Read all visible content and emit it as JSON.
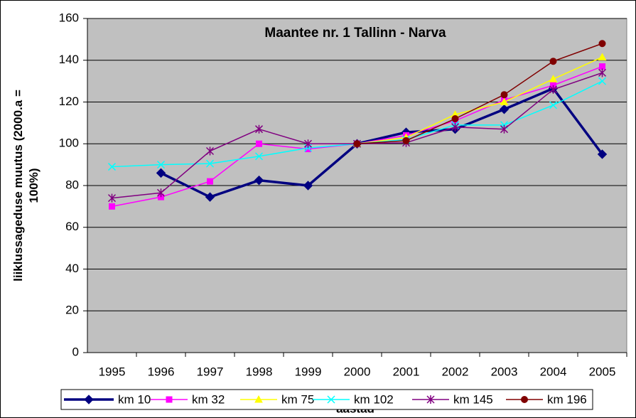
{
  "chart_data": {
    "type": "line",
    "title": "Maantee nr. 1 Tallinn - Narva",
    "y_label": "liiklussageduse muutus (2000.a = 100%)",
    "x_label": "aastad",
    "categories": [
      "1995",
      "1996",
      "1997",
      "1998",
      "1999",
      "2000",
      "2001",
      "2002",
      "2003",
      "2004",
      "2005"
    ],
    "ylim": [
      0,
      160
    ],
    "yticks": [
      0,
      20,
      40,
      60,
      80,
      100,
      120,
      140,
      160
    ],
    "grid": true,
    "legend": "bottom",
    "series": [
      {
        "name": "km 10",
        "color": "#000080",
        "marker": "diamond",
        "values": [
          null,
          86,
          74.5,
          82.5,
          80,
          100,
          105.5,
          107,
          116.5,
          126.5,
          95
        ]
      },
      {
        "name": "km 32",
        "color": "#ff00ff",
        "marker": "square",
        "values": [
          70,
          74.5,
          82,
          100,
          97.5,
          100,
          104,
          111,
          121,
          128,
          137
        ]
      },
      {
        "name": "km 75",
        "color": "#ffff00",
        "marker": "triangle",
        "values": [
          null,
          null,
          null,
          null,
          null,
          100,
          103,
          114,
          120,
          131,
          141.5
        ]
      },
      {
        "name": "km 102",
        "color": "#00ffff",
        "marker": "x",
        "values": [
          89,
          90,
          90.5,
          94,
          98,
          100,
          102,
          109,
          109,
          118.5,
          130
        ]
      },
      {
        "name": "km 145",
        "color": "#800080",
        "marker": "asterisk",
        "values": [
          74,
          76.5,
          96.5,
          107,
          100,
          100,
          100.5,
          108,
          107,
          126,
          134
        ]
      },
      {
        "name": "km 196",
        "color": "#800000",
        "marker": "circle",
        "values": [
          null,
          null,
          null,
          null,
          null,
          100,
          101.5,
          112,
          123.5,
          139.5,
          148
        ]
      }
    ]
  }
}
